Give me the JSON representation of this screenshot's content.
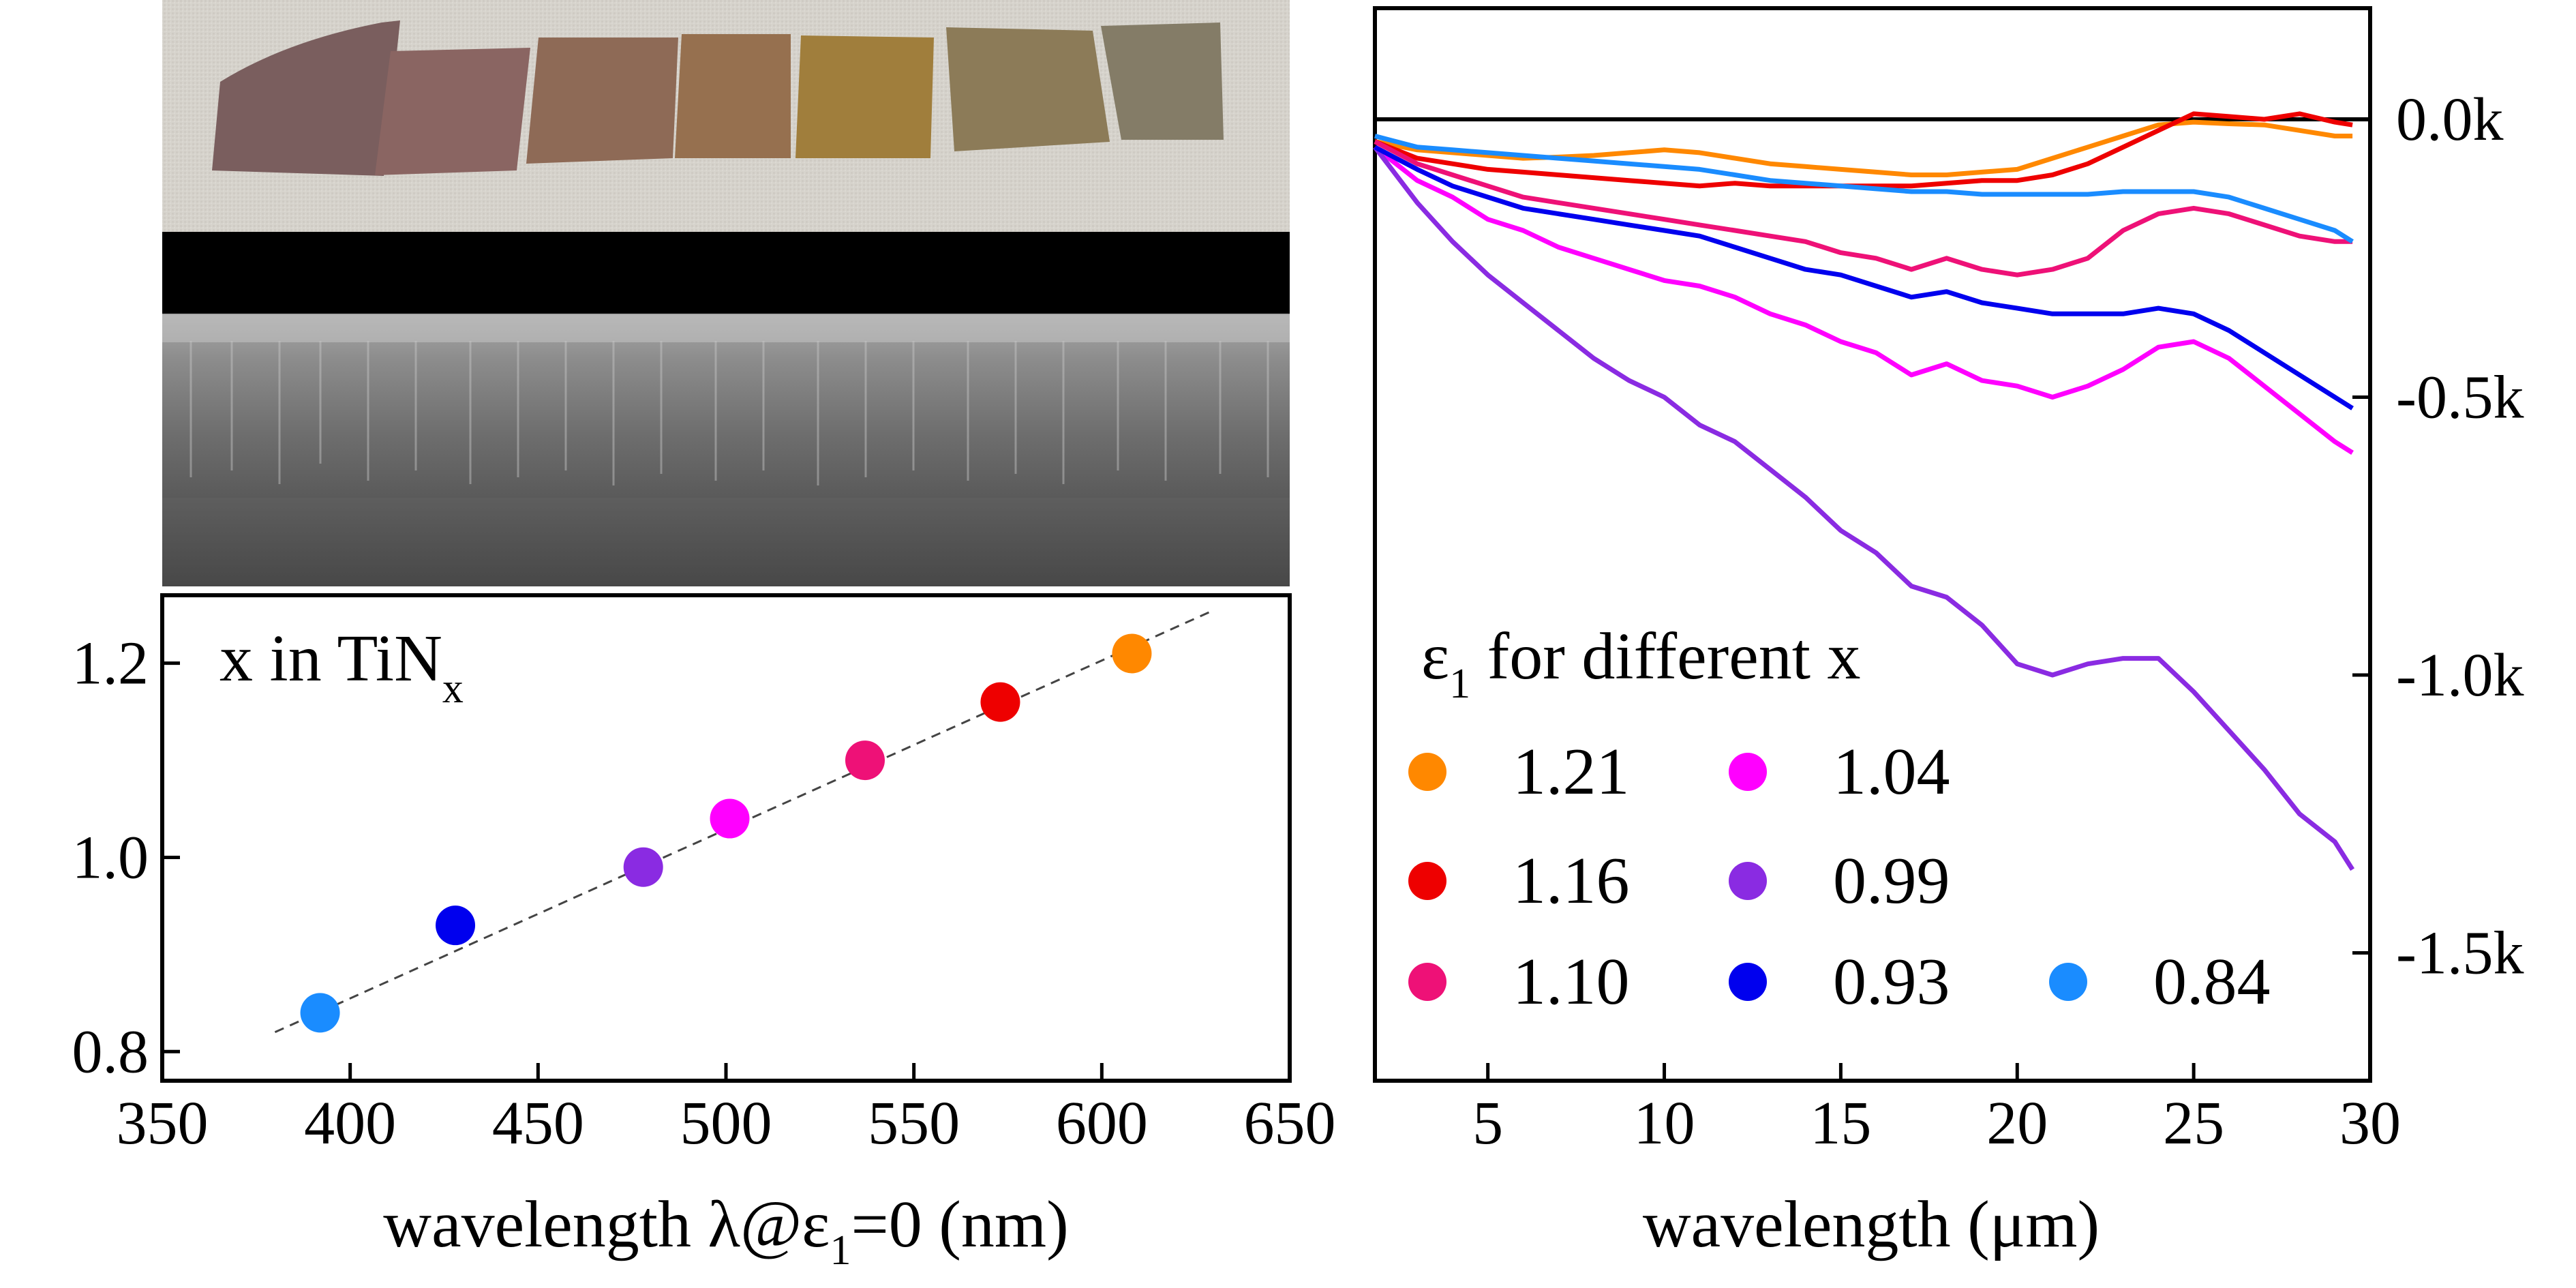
{
  "photos": {
    "top_description": "row of seven TiNx film samples on a grey fabric background",
    "bottom_description": "SEM cross-section of a columnar TiNx film"
  },
  "chart_data": [
    {
      "type": "scatter",
      "title": "x in TiNx",
      "title_main": "x in TiN",
      "title_sub": "x",
      "xlabel": "wavelength λ@ε1=0 (nm)",
      "xlabel_before": "wavelength λ@ε",
      "xlabel_sub": "1",
      "xlabel_after": "=0 (nm)",
      "ylabel": "",
      "xlim": [
        350,
        650
      ],
      "ylim": [
        0.77,
        1.27
      ],
      "xticks": [
        350,
        400,
        450,
        500,
        550,
        600,
        650
      ],
      "xtick_labels": [
        "350",
        "400",
        "450",
        "500",
        "550",
        "600",
        "650"
      ],
      "yticks": [
        0.8,
        1.0,
        1.2
      ],
      "ytick_labels": [
        "0.8",
        "1.0",
        "1.2"
      ],
      "points": [
        {
          "x": 392,
          "y": 0.84,
          "color": "#1a8cff"
        },
        {
          "x": 428,
          "y": 0.93,
          "color": "#0000ee"
        },
        {
          "x": 478,
          "y": 0.99,
          "color": "#8a2be2"
        },
        {
          "x": 501,
          "y": 1.04,
          "color": "#ff00ff"
        },
        {
          "x": 537,
          "y": 1.1,
          "color": "#ee1177"
        },
        {
          "x": 573,
          "y": 1.16,
          "color": "#ee0000"
        },
        {
          "x": 608,
          "y": 1.21,
          "color": "#ff8800"
        }
      ],
      "fit_line": {
        "x": [
          380,
          630
        ],
        "y": [
          0.82,
          1.255
        ],
        "style": "dashed"
      }
    },
    {
      "type": "line",
      "title": "",
      "xlabel": "wavelength (μm)",
      "ylabel": "",
      "xlim": [
        1.8,
        30
      ],
      "ylim": [
        -1.73,
        0.2
      ],
      "xticks": [
        5,
        10,
        15,
        20,
        25,
        30
      ],
      "xtick_labels": [
        "5",
        "10",
        "15",
        "20",
        "25",
        "30"
      ],
      "yticks": [
        0.0,
        -0.5,
        -1.0,
        -1.5
      ],
      "ytick_labels": [
        "0.0k",
        "-0.5k",
        "-1.0k",
        "-1.5k"
      ],
      "y_axis_side": "right",
      "zero_line": true,
      "legend_title": "ε1 for different x",
      "legend_title_parts": [
        "ε",
        "1",
        " for different x"
      ],
      "legend_position": "lower-left",
      "series": [
        {
          "name": "1.21",
          "color": "#ff8800",
          "x": [
            1.8,
            3,
            4,
            5,
            6,
            7,
            8,
            9,
            10,
            11,
            12,
            13,
            14,
            15,
            16,
            17,
            18,
            19,
            20,
            21,
            22,
            23,
            24,
            25,
            26,
            27,
            28,
            29,
            29.5
          ],
          "y": [
            -0.04,
            -0.055,
            -0.06,
            -0.065,
            -0.07,
            -0.068,
            -0.065,
            -0.06,
            -0.055,
            -0.06,
            -0.07,
            -0.08,
            -0.085,
            -0.09,
            -0.095,
            -0.1,
            -0.1,
            -0.095,
            -0.09,
            -0.07,
            -0.05,
            -0.03,
            -0.01,
            -0.005,
            -0.008,
            -0.01,
            -0.02,
            -0.03,
            -0.03
          ]
        },
        {
          "name": "1.16",
          "color": "#ee0000",
          "x": [
            1.8,
            3,
            4,
            5,
            6,
            7,
            8,
            9,
            10,
            11,
            12,
            13,
            14,
            15,
            16,
            17,
            18,
            19,
            20,
            21,
            22,
            23,
            24,
            25,
            26,
            27,
            28,
            29,
            29.5
          ],
          "y": [
            -0.04,
            -0.07,
            -0.08,
            -0.09,
            -0.095,
            -0.1,
            -0.105,
            -0.11,
            -0.115,
            -0.12,
            -0.115,
            -0.12,
            -0.12,
            -0.12,
            -0.12,
            -0.12,
            -0.115,
            -0.11,
            -0.11,
            -0.1,
            -0.08,
            -0.05,
            -0.02,
            0.01,
            0.005,
            0.0,
            0.01,
            -0.005,
            -0.01
          ]
        },
        {
          "name": "1.10",
          "color": "#ee1177",
          "x": [
            1.8,
            3,
            4,
            5,
            6,
            7,
            8,
            9,
            10,
            11,
            12,
            13,
            14,
            15,
            16,
            17,
            18,
            19,
            20,
            21,
            22,
            23,
            24,
            25,
            26,
            27,
            28,
            29,
            29.5
          ],
          "y": [
            -0.04,
            -0.08,
            -0.1,
            -0.12,
            -0.14,
            -0.15,
            -0.16,
            -0.17,
            -0.18,
            -0.19,
            -0.2,
            -0.21,
            -0.22,
            -0.24,
            -0.25,
            -0.27,
            -0.25,
            -0.27,
            -0.28,
            -0.27,
            -0.25,
            -0.2,
            -0.17,
            -0.16,
            -0.17,
            -0.19,
            -0.21,
            -0.22,
            -0.22
          ]
        },
        {
          "name": "1.04",
          "color": "#ff00ff",
          "x": [
            1.8,
            3,
            4,
            5,
            6,
            7,
            8,
            9,
            10,
            11,
            12,
            13,
            14,
            15,
            16,
            17,
            18,
            19,
            20,
            21,
            22,
            23,
            24,
            25,
            26,
            27,
            28,
            29,
            29.5
          ],
          "y": [
            -0.05,
            -0.11,
            -0.14,
            -0.18,
            -0.2,
            -0.23,
            -0.25,
            -0.27,
            -0.29,
            -0.3,
            -0.32,
            -0.35,
            -0.37,
            -0.4,
            -0.42,
            -0.46,
            -0.44,
            -0.47,
            -0.48,
            -0.5,
            -0.48,
            -0.45,
            -0.41,
            -0.4,
            -0.43,
            -0.48,
            -0.53,
            -0.58,
            -0.6
          ]
        },
        {
          "name": "0.99",
          "color": "#8a2be2",
          "x": [
            1.8,
            3,
            4,
            5,
            6,
            7,
            8,
            9,
            10,
            11,
            12,
            13,
            14,
            15,
            16,
            17,
            18,
            19,
            20,
            21,
            22,
            23,
            24,
            25,
            26,
            27,
            28,
            29,
            29.5
          ],
          "y": [
            -0.05,
            -0.15,
            -0.22,
            -0.28,
            -0.33,
            -0.38,
            -0.43,
            -0.47,
            -0.5,
            -0.55,
            -0.58,
            -0.63,
            -0.68,
            -0.74,
            -0.78,
            -0.84,
            -0.86,
            -0.91,
            -0.98,
            -1.0,
            -0.98,
            -0.97,
            -0.97,
            -1.03,
            -1.1,
            -1.17,
            -1.25,
            -1.3,
            -1.35
          ]
        },
        {
          "name": "0.93",
          "color": "#0000ee",
          "x": [
            1.8,
            3,
            4,
            5,
            6,
            7,
            8,
            9,
            10,
            11,
            12,
            13,
            14,
            15,
            16,
            17,
            18,
            19,
            20,
            21,
            22,
            23,
            24,
            25,
            26,
            27,
            28,
            29,
            29.5
          ],
          "y": [
            -0.05,
            -0.09,
            -0.12,
            -0.14,
            -0.16,
            -0.17,
            -0.18,
            -0.19,
            -0.2,
            -0.21,
            -0.23,
            -0.25,
            -0.27,
            -0.28,
            -0.3,
            -0.32,
            -0.31,
            -0.33,
            -0.34,
            -0.35,
            -0.35,
            -0.35,
            -0.34,
            -0.35,
            -0.38,
            -0.42,
            -0.46,
            -0.5,
            -0.52
          ]
        },
        {
          "name": "0.84",
          "color": "#1a8cff",
          "x": [
            1.8,
            3,
            4,
            5,
            6,
            7,
            8,
            9,
            10,
            11,
            12,
            13,
            14,
            15,
            16,
            17,
            18,
            19,
            20,
            21,
            22,
            23,
            24,
            25,
            26,
            27,
            28,
            29,
            29.5
          ],
          "y": [
            -0.03,
            -0.05,
            -0.055,
            -0.06,
            -0.065,
            -0.07,
            -0.075,
            -0.08,
            -0.085,
            -0.09,
            -0.1,
            -0.11,
            -0.115,
            -0.12,
            -0.125,
            -0.13,
            -0.13,
            -0.135,
            -0.135,
            -0.135,
            -0.135,
            -0.13,
            -0.13,
            -0.13,
            -0.14,
            -0.16,
            -0.18,
            -0.2,
            -0.22
          ]
        }
      ]
    }
  ]
}
